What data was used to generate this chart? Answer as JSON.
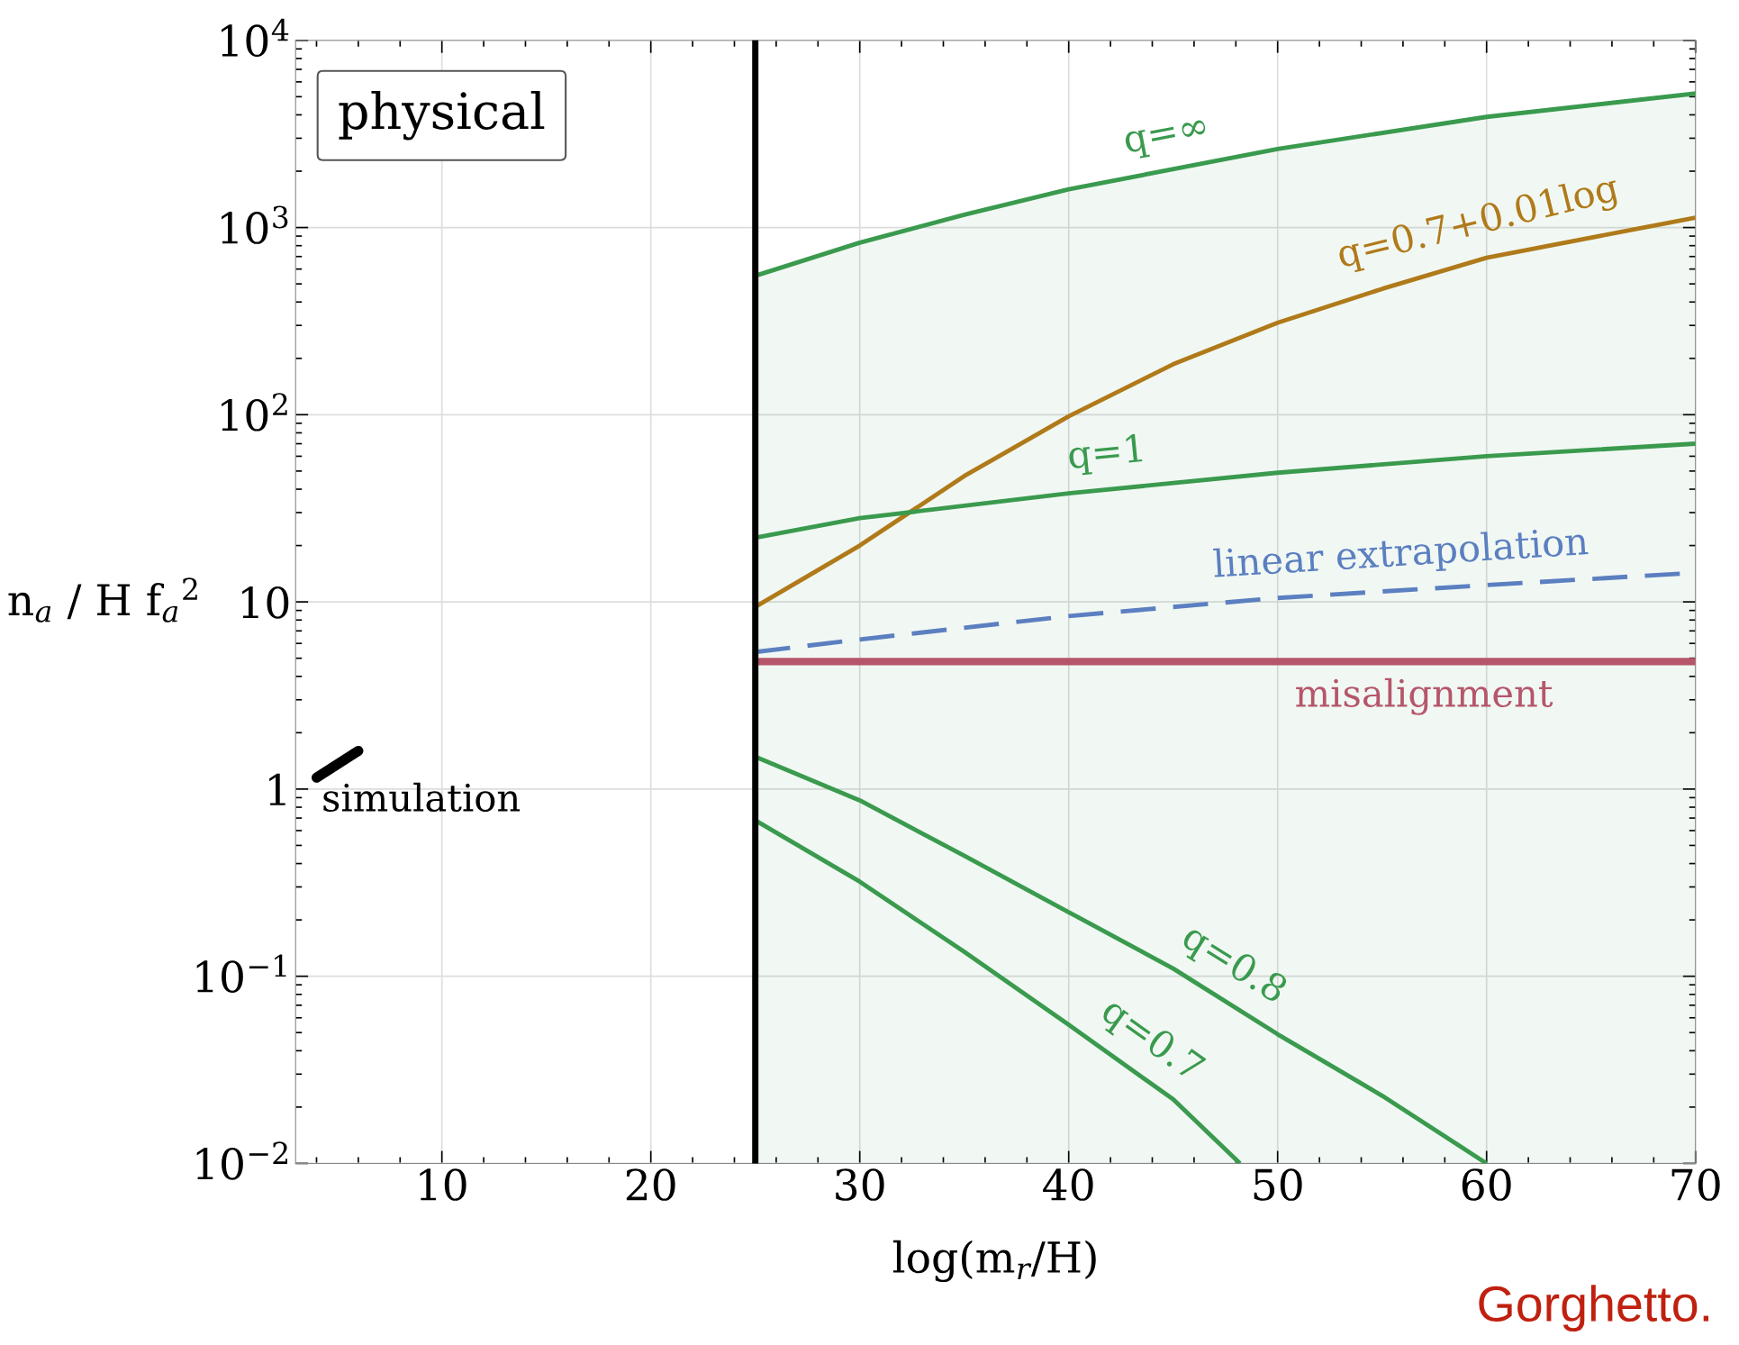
{
  "chart_data": {
    "type": "line",
    "xlabel": "log(m$_{r}$/H)",
    "ylabel": "n$_{a}$ / H f$_{a}$$^{2}$",
    "xlim": [
      3,
      70
    ],
    "xticks": [
      10,
      20,
      30,
      40,
      50,
      60,
      70
    ],
    "ylim": [
      0.01,
      10000
    ],
    "yticks": [
      {
        "value": 0.01,
        "label": "10$^{−2}$"
      },
      {
        "value": 0.1,
        "label": "10$^{−1}$"
      },
      1,
      10,
      {
        "value": 100,
        "label": "10$^{2}$"
      },
      {
        "value": 1000,
        "label": "10$^{3}$"
      },
      {
        "value": 10000,
        "label": "10$^{4}$"
      }
    ],
    "log": "y",
    "grid": true,
    "ref_lines": [
      {
        "axis": "x",
        "value": 25,
        "color": "#000000"
      }
    ],
    "series": [
      {
        "name": "q=∞",
        "type": "area",
        "color": "#3a9a4e",
        "x": [
          25,
          30,
          35,
          40,
          50,
          60,
          70
        ],
        "values": [
          552,
          830,
          1170,
          1600,
          2630,
          3900,
          5200
        ]
      },
      {
        "name": "q=0.7+0.01log",
        "color": "#b07a1a",
        "x": [
          25,
          30,
          35,
          40,
          45,
          50,
          55,
          60,
          70
        ],
        "values": [
          9.4,
          20,
          47,
          98,
          186,
          310,
          470,
          690,
          1130
        ]
      },
      {
        "name": "q=1",
        "color": "#3a9a4e",
        "x": [
          25,
          30,
          40,
          50,
          60,
          70
        ],
        "values": [
          22,
          28,
          38,
          49,
          60,
          70
        ]
      },
      {
        "name": "linear extrapolation",
        "color": "#5b7fc0",
        "line_style": "dashed",
        "x": [
          25,
          30,
          40,
          50,
          60,
          70
        ],
        "values": [
          5.4,
          6.3,
          8.4,
          10.5,
          12.3,
          14.3
        ]
      },
      {
        "name": "misalignment",
        "color": "#b5566a",
        "x": [
          25,
          70
        ],
        "values": [
          4.8,
          4.8
        ]
      },
      {
        "name": "q=0.8",
        "color": "#3a9a4e",
        "x": [
          25,
          30,
          35,
          40,
          45,
          50,
          55,
          60
        ],
        "values": [
          1.49,
          0.87,
          0.44,
          0.22,
          0.11,
          0.049,
          0.023,
          0.01
        ]
      },
      {
        "name": "q=0.7",
        "color": "#3a9a4e",
        "x": [
          25,
          30,
          35,
          40,
          45,
          48.2
        ],
        "values": [
          0.68,
          0.32,
          0.135,
          0.055,
          0.022,
          0.01
        ]
      },
      {
        "name": "simulation",
        "color": "#000000",
        "x": [
          4,
          6
        ],
        "values": [
          1.15,
          1.6
        ]
      }
    ],
    "annotations": [
      "physical",
      "Gorghetto."
    ]
  }
}
